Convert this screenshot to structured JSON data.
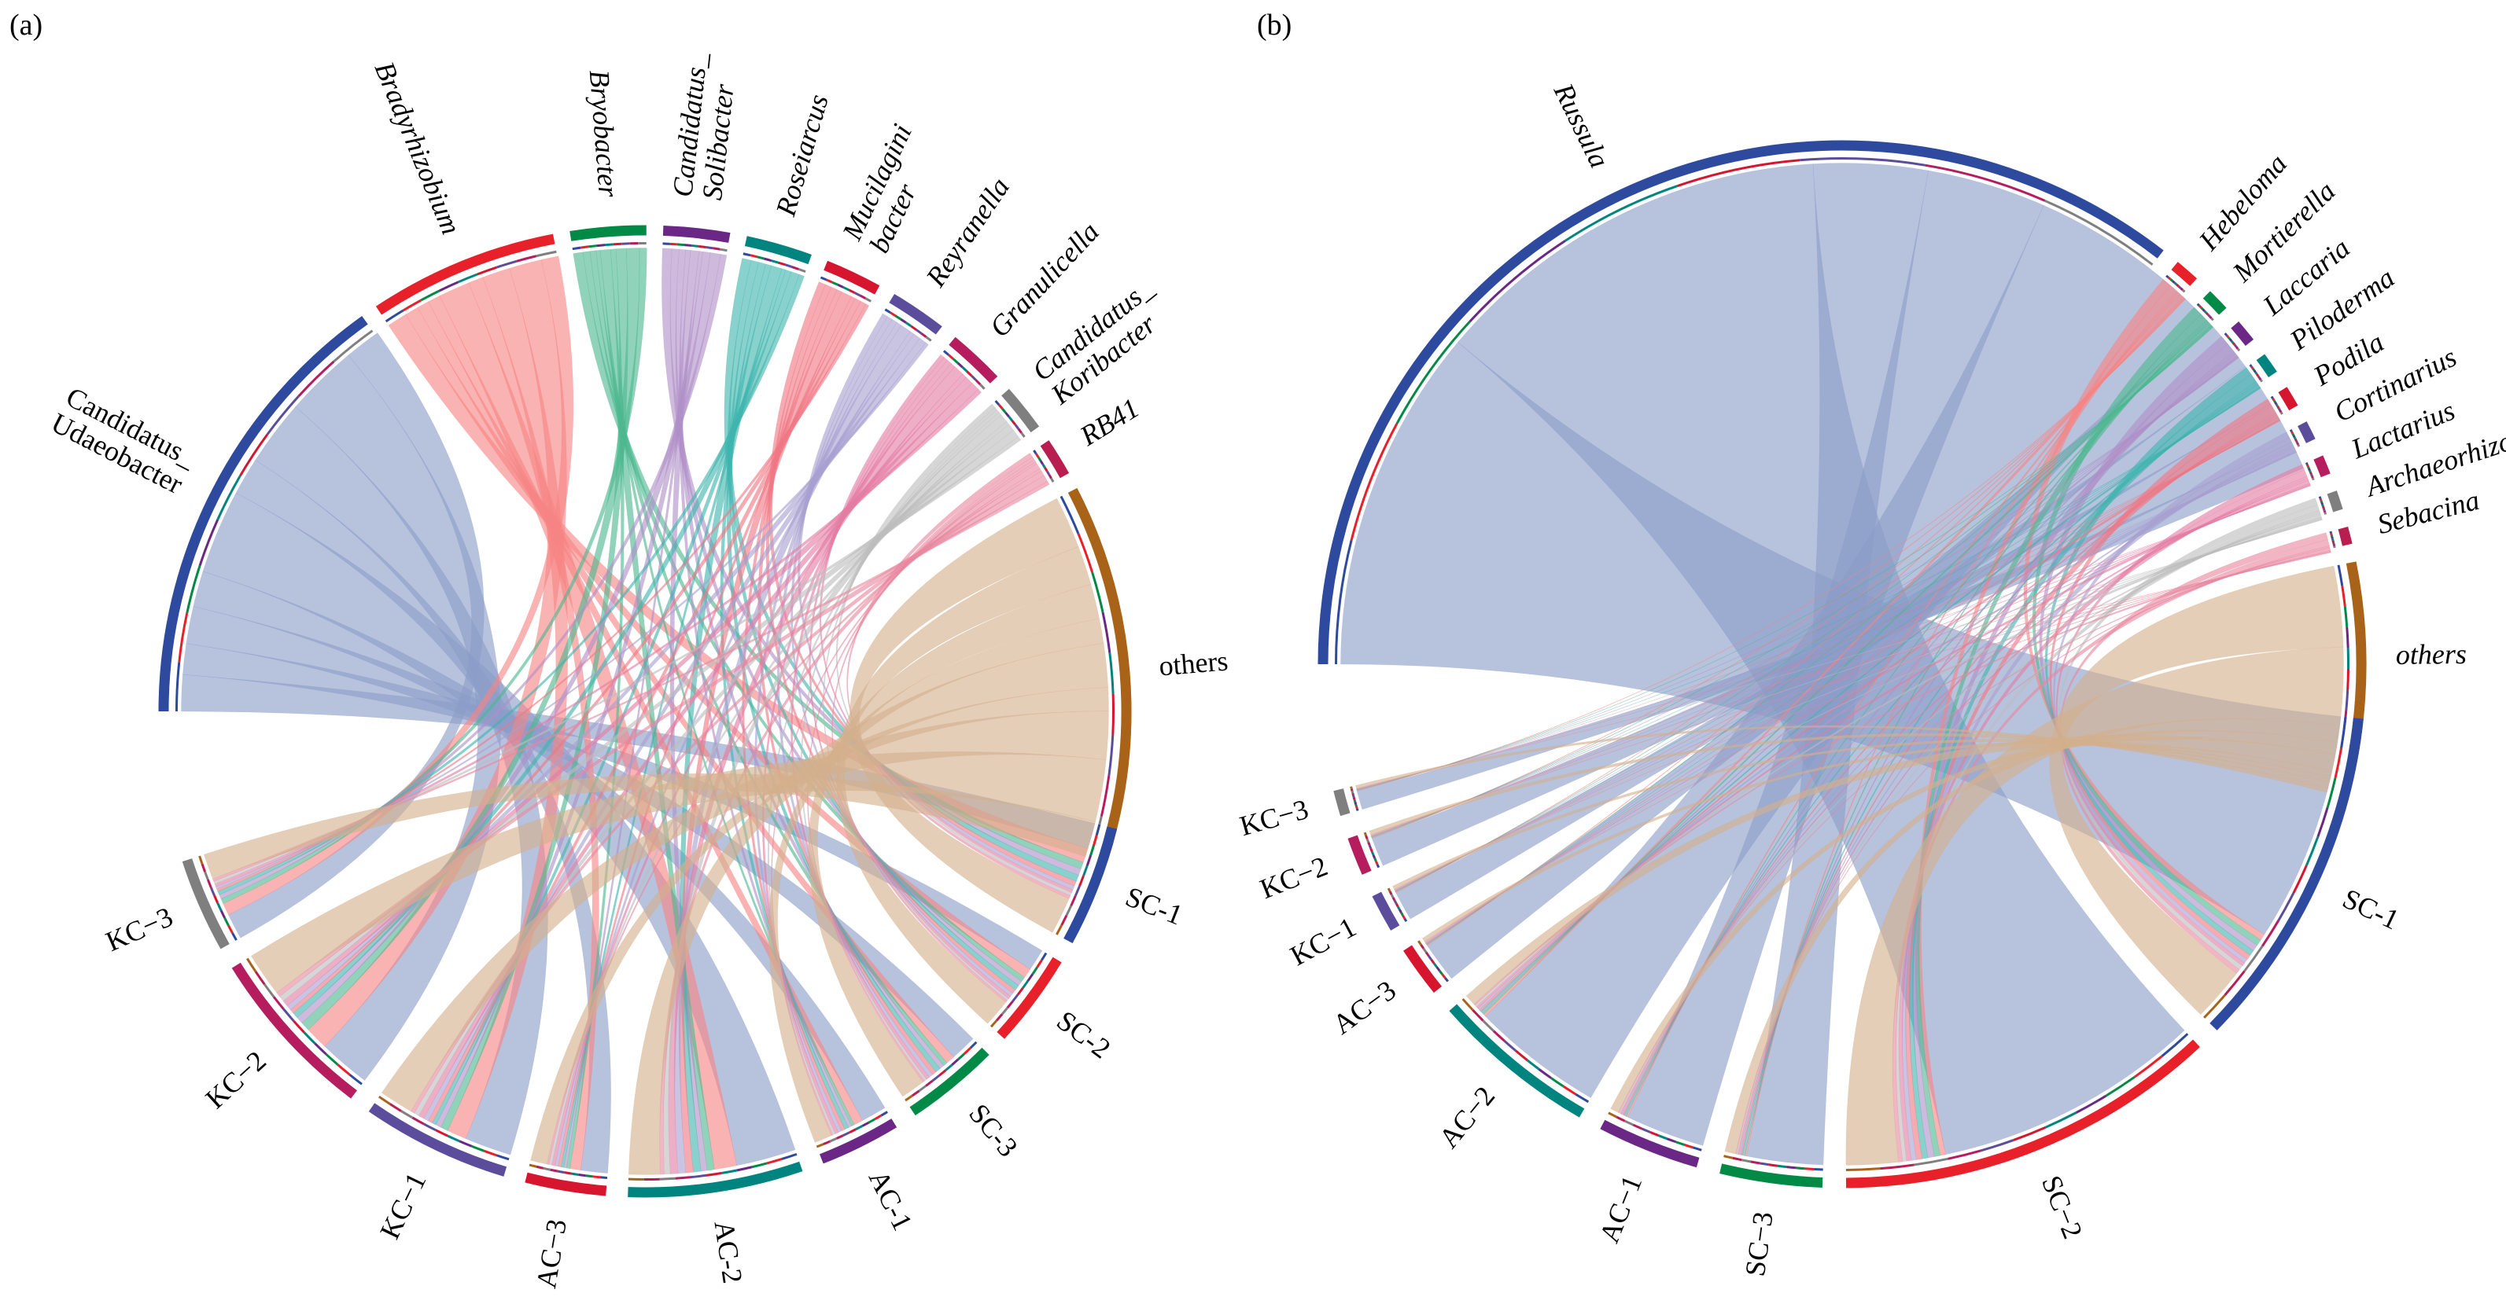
{
  "chart_data": [
    {
      "type": "chord",
      "panel_label": "(a)",
      "title": "",
      "top": [
        {
          "name": "Candidatus_ Udaeobacter",
          "lines": [
            "Candidatus_",
            "Udaeobacter"
          ],
          "italic": false,
          "color": "#2E4A9E",
          "ribbon": "#8A9CC8",
          "value": 24
        },
        {
          "name": "Bradyrhizobium",
          "lines": [
            "Bradyrhizobium"
          ],
          "italic": true,
          "color": "#E8202A",
          "ribbon": "#F78585",
          "value": 10
        },
        {
          "name": "Bryobacter",
          "lines": [
            "Bryobacter"
          ],
          "italic": true,
          "color": "#008A45",
          "ribbon": "#4DB890",
          "value": 4
        },
        {
          "name": "Candidatus_ Solibacter",
          "lines": [
            "Candidatus_",
            "Solibacter"
          ],
          "italic": true,
          "color": "#6A2785",
          "ribbon": "#B090C8",
          "value": 3.5
        },
        {
          "name": "Roseiarcus",
          "lines": [
            "Roseiarcus"
          ],
          "italic": true,
          "color": "#00847F",
          "ribbon": "#3FB5AE",
          "value": 3.5
        },
        {
          "name": "Mucilagini bacter",
          "lines": [
            "Mucilagini",
            "bacter"
          ],
          "italic": true,
          "color": "#D6162E",
          "ribbon": "#F07785",
          "value": 3
        },
        {
          "name": "Reyranella",
          "lines": [
            "Reyranella"
          ],
          "italic": true,
          "color": "#5B4D9C",
          "ribbon": "#A8A0D0",
          "value": 3
        },
        {
          "name": "Granulicella",
          "lines": [
            "Granulicella"
          ],
          "italic": true,
          "color": "#B61D5E",
          "ribbon": "#E37DA3",
          "value": 3
        },
        {
          "name": "Candidatus_ Koribacter",
          "lines": [
            "Candidatus_",
            "Koribacter"
          ],
          "italic": true,
          "color": "#7F7F7F",
          "ribbon": "#BDBDBD",
          "value": 2.5
        },
        {
          "name": "RB41",
          "lines": [
            "RB41"
          ],
          "italic": true,
          "color": "#B81E50",
          "ribbon": "#E8889F",
          "value": 2
        },
        {
          "name": "others",
          "lines": [
            "others"
          ],
          "italic": false,
          "color": "#A86318",
          "ribbon": "#D4B08C",
          "value": 20
        }
      ],
      "bottom": [
        {
          "name": "SC-1",
          "color": "#2E4A9E",
          "value": 9
        },
        {
          "name": "SC-2",
          "color": "#E8202A",
          "value": 7
        },
        {
          "name": "SC-3",
          "color": "#008A45",
          "value": 7
        },
        {
          "name": "AC-1",
          "color": "#6A2785",
          "value": 6
        },
        {
          "name": "AC-2",
          "color": "#00847F",
          "value": 13
        },
        {
          "name": "AC−3",
          "color": "#D6162E",
          "value": 6
        },
        {
          "name": "KC−1",
          "color": "#5B4D9C",
          "value": 11
        },
        {
          "name": "KC−2",
          "color": "#B61D5E",
          "value": 13
        },
        {
          "name": "KC−3",
          "color": "#7F7F7F",
          "value": 7
        }
      ]
    },
    {
      "type": "chord",
      "panel_label": "(b)",
      "title": "",
      "top": [
        {
          "name": "Russula",
          "lines": [
            "Russula"
          ],
          "italic": true,
          "color": "#2E4A9E",
          "ribbon": "#8A9CC8",
          "value": 60
        },
        {
          "name": "Hebeloma",
          "lines": [
            "Hebeloma"
          ],
          "italic": true,
          "color": "#E8202A",
          "ribbon": "#F78585",
          "value": 1.3
        },
        {
          "name": "Mortierella",
          "lines": [
            "Mortierella"
          ],
          "italic": true,
          "color": "#008A45",
          "ribbon": "#4DB890",
          "value": 1.2
        },
        {
          "name": "Laccaria",
          "lines": [
            "Laccaria"
          ],
          "italic": true,
          "color": "#6A2785",
          "ribbon": "#B090C8",
          "value": 1.2
        },
        {
          "name": "Piloderma",
          "lines": [
            "Piloderma"
          ],
          "italic": true,
          "color": "#00847F",
          "ribbon": "#3FB5AE",
          "value": 1.1
        },
        {
          "name": "Podila",
          "lines": [
            "Podila"
          ],
          "italic": true,
          "color": "#D6162E",
          "ribbon": "#F07785",
          "value": 1.1
        },
        {
          "name": "Cortinarius",
          "lines": [
            "Cortinarius"
          ],
          "italic": true,
          "color": "#5B4D9C",
          "ribbon": "#A8A0D0",
          "value": 1.0
        },
        {
          "name": "Lactarius",
          "lines": [
            "Lactarius"
          ],
          "italic": true,
          "color": "#B61D5E",
          "ribbon": "#E37DA3",
          "value": 1.0
        },
        {
          "name": "Archaeorhizomyces",
          "lines": [
            "Archaeorhizomyces"
          ],
          "italic": true,
          "color": "#7F7F7F",
          "ribbon": "#BDBDBD",
          "value": 1.0
        },
        {
          "name": "Sebacina",
          "lines": [
            "Sebacina"
          ],
          "italic": true,
          "color": "#B81E50",
          "ribbon": "#E8889F",
          "value": 0.9
        },
        {
          "name": "others",
          "lines": [
            "others"
          ],
          "italic": true,
          "color": "#A86318",
          "ribbon": "#D4B08C",
          "value": 10
        }
      ],
      "bottom": [
        {
          "name": "SC-1",
          "color": "#2E4A9E",
          "value": 27
        },
        {
          "name": "SC−2",
          "color": "#E8202A",
          "value": 30
        },
        {
          "name": "SC−3",
          "color": "#008A45",
          "value": 8
        },
        {
          "name": "AC−1",
          "color": "#6A2785",
          "value": 8
        },
        {
          "name": "AC−2",
          "color": "#00847F",
          "value": 13
        },
        {
          "name": "AC−3",
          "color": "#D6162E",
          "value": 4
        },
        {
          "name": "KC−1",
          "color": "#5B4D9C",
          "value": 3
        },
        {
          "name": "KC−2",
          "color": "#B61D5E",
          "value": 3
        },
        {
          "name": "KC−3",
          "color": "#7F7F7F",
          "value": 2
        }
      ]
    }
  ]
}
